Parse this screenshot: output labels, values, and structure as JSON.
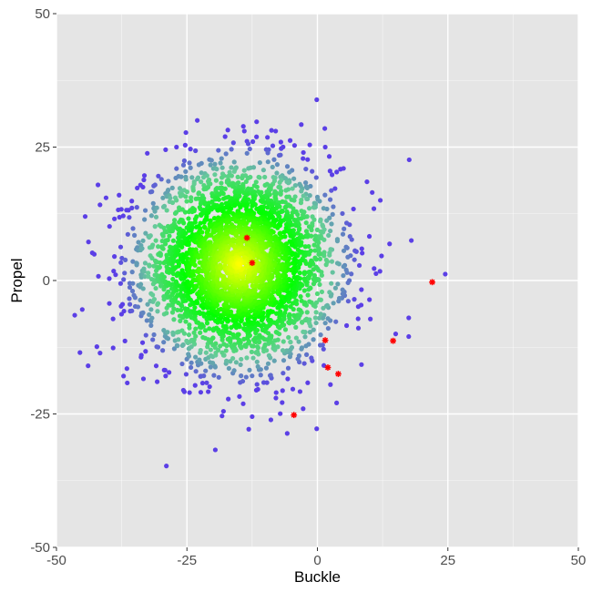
{
  "chart_data": {
    "type": "scatter",
    "title": "",
    "xlabel": "Buckle",
    "ylabel": "Propel",
    "xlim": [
      -50,
      50
    ],
    "ylim": [
      -50,
      50
    ],
    "x_ticks": [
      -50,
      -25,
      0,
      25,
      50
    ],
    "y_ticks": [
      -50,
      -25,
      0,
      25,
      50
    ],
    "x_tick_labels": [
      "-50",
      "-25",
      "0",
      "25",
      "50"
    ],
    "y_tick_labels": [
      "-50",
      "-25",
      "0",
      "25",
      "50"
    ],
    "grid": true,
    "legend": "none",
    "density_cloud": {
      "center": [
        -15,
        3
      ],
      "spread": [
        9,
        9
      ],
      "approx_count": 3500,
      "color_scale": [
        "#ffff00",
        "#00ff00",
        "#66cc99",
        "#5b3fe6"
      ]
    },
    "outlier_points": [
      {
        "x": -46.5,
        "y": -6.5
      },
      {
        "x": -45.5,
        "y": -13.5
      },
      {
        "x": -44.5,
        "y": 12
      },
      {
        "x": -40.5,
        "y": 15.5
      },
      {
        "x": -38,
        "y": 16
      },
      {
        "x": -36.5,
        "y": -16.5
      },
      {
        "x": -27,
        "y": 25
      },
      {
        "x": -24.5,
        "y": -21
      },
      {
        "x": -18,
        "y": -24.5
      },
      {
        "x": -14,
        "y": 28
      },
      {
        "x": -12.5,
        "y": -25.5
      },
      {
        "x": -8,
        "y": 28
      },
      {
        "x": 1.5,
        "y": 25
      },
      {
        "x": 5,
        "y": 21
      },
      {
        "x": 9.5,
        "y": 18.5
      },
      {
        "x": 10.5,
        "y": 16.5
      },
      {
        "x": 15,
        "y": -10
      },
      {
        "x": 17.5,
        "y": -7
      },
      {
        "x": 17.5,
        "y": -10.5
      },
      {
        "x": 18,
        "y": 7.5
      },
      {
        "x": 24.5,
        "y": 1.2
      },
      {
        "x": 2.5,
        "y": -19.5
      }
    ],
    "highlighted_points": [
      {
        "x": -13.5,
        "y": 8
      },
      {
        "x": -12.5,
        "y": 3.3
      },
      {
        "x": 1.5,
        "y": -11.2
      },
      {
        "x": 2,
        "y": -16.3
      },
      {
        "x": 4,
        "y": -17.5
      },
      {
        "x": 14.5,
        "y": -11.3
      },
      {
        "x": 22,
        "y": -0.3
      },
      {
        "x": -4.5,
        "y": -25.2
      }
    ],
    "highlight_color": "#ff0000",
    "outlier_color": "#5b3fe6",
    "panel_background": "#e5e5e5",
    "grid_color": "#ffffff"
  }
}
